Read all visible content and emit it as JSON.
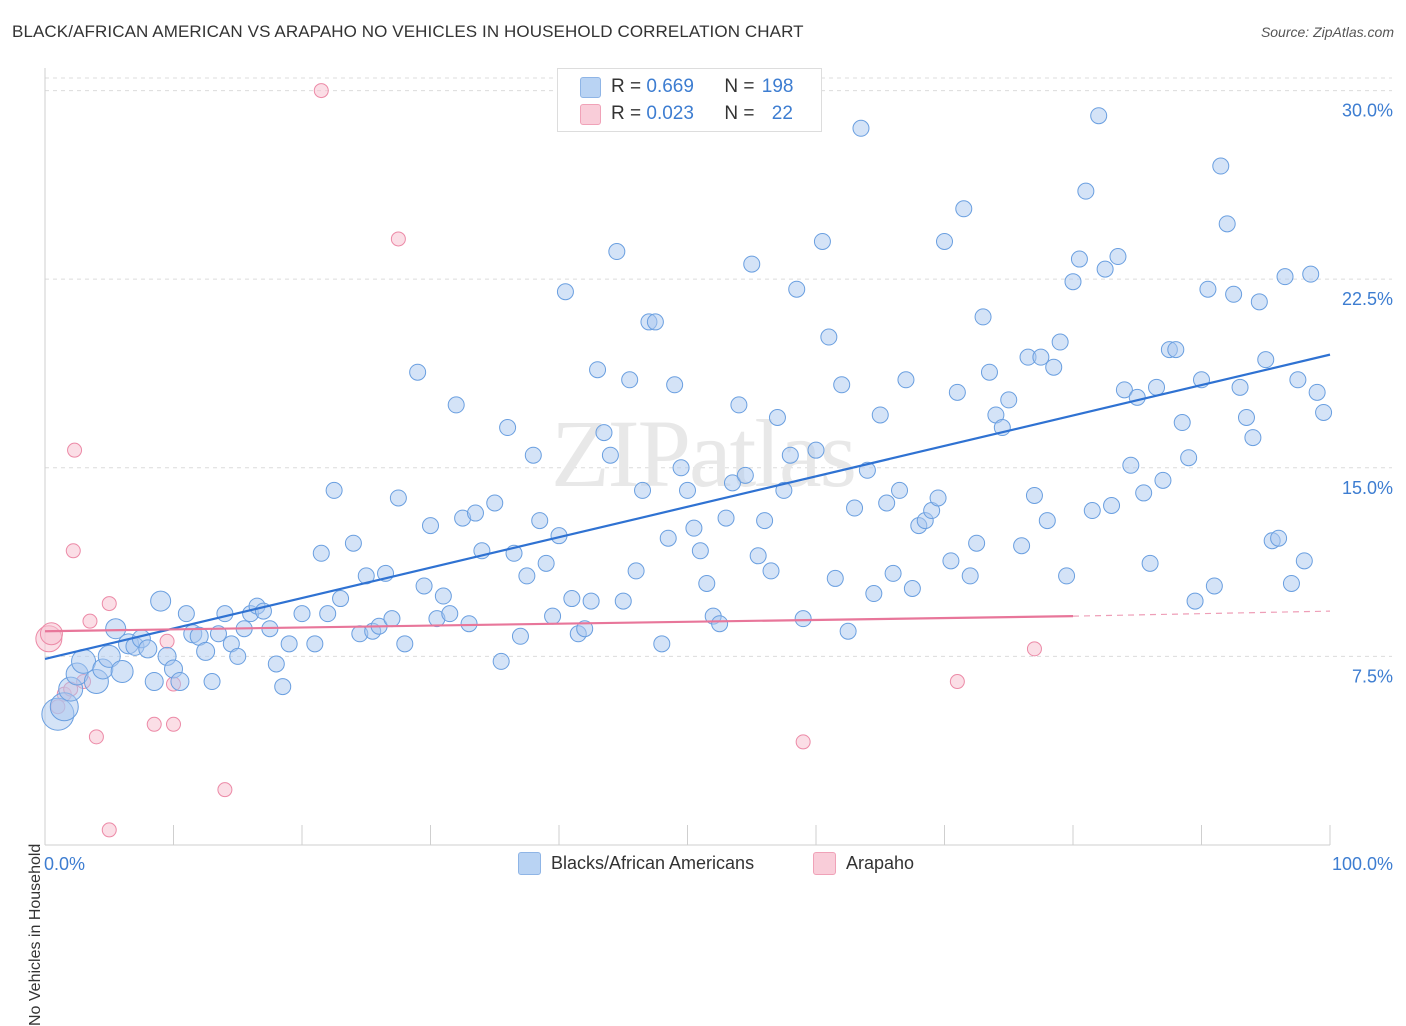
{
  "title": "BLACK/AFRICAN AMERICAN VS ARAPAHO NO VEHICLES IN HOUSEHOLD CORRELATION CHART",
  "source": "Source: ZipAtlas.com",
  "watermark": "ZIPatlas",
  "colors": {
    "blue_fill": "#a9c8f0",
    "blue_stroke": "#6a9fe0",
    "blue_line": "#2f72d2",
    "pink_fill": "#f7c2d1",
    "pink_stroke": "#ec8aa7",
    "pink_line": "#e8769a",
    "axis_text": "#3d7dd1"
  },
  "legend": {
    "rows": [
      {
        "r_label": "R = ",
        "r_value": "0.669",
        "n_label": "N = ",
        "n_value": "198"
      },
      {
        "r_label": "R = ",
        "r_value": "0.023",
        "n_label": "N = ",
        "n_value": "22"
      }
    ]
  },
  "bottom_legend": {
    "series1": "Blacks/African Americans",
    "series2": "Arapaho"
  },
  "chart_data": {
    "type": "scatter",
    "title": "BLACK/AFRICAN AMERICAN VS ARAPAHO NO VEHICLES IN HOUSEHOLD CORRELATION CHART",
    "xlabel": "",
    "ylabel": "No Vehicles in Household",
    "xlim": [
      0,
      100
    ],
    "ylim": [
      0,
      30.5
    ],
    "x_tick_labels": [
      "0.0%",
      "100.0%"
    ],
    "y_ticks": [
      7.5,
      15.0,
      22.5,
      30.0
    ],
    "y_tick_labels": [
      "7.5%",
      "15.0%",
      "22.5%",
      "30.0%"
    ],
    "grid": "horizontal dashed",
    "series": [
      {
        "name": "Blacks/African Americans",
        "trend": {
          "x": [
            0,
            100
          ],
          "y": [
            7.4,
            19.5
          ]
        },
        "points": [
          [
            1,
            5.2,
            14
          ],
          [
            1.5,
            5.5,
            12
          ],
          [
            2,
            6.2,
            10
          ],
          [
            2.5,
            6.8,
            9
          ],
          [
            3,
            7.3,
            10
          ],
          [
            4,
            6.5,
            10
          ],
          [
            4.5,
            7.0,
            8
          ],
          [
            5,
            7.5,
            9
          ],
          [
            5.5,
            8.6,
            8
          ],
          [
            6,
            6.9,
            9
          ],
          [
            6.5,
            8.0,
            8
          ],
          [
            7,
            7.9,
            7
          ],
          [
            7.5,
            8.2,
            7
          ],
          [
            8,
            7.8,
            7
          ],
          [
            8.5,
            6.5,
            7
          ],
          [
            9,
            9.7,
            8
          ],
          [
            9.5,
            7.5,
            7
          ],
          [
            10,
            7.0,
            7
          ],
          [
            10.5,
            6.5,
            7
          ],
          [
            11,
            9.2,
            6
          ],
          [
            11.5,
            8.4,
            7
          ],
          [
            12,
            8.3,
            7
          ],
          [
            12.5,
            7.7,
            7
          ],
          [
            13,
            6.5,
            6
          ],
          [
            13.5,
            8.4,
            6
          ],
          [
            14,
            9.2,
            6
          ],
          [
            14.5,
            8.0,
            6
          ],
          [
            15,
            7.5,
            6
          ],
          [
            15.5,
            8.6,
            6
          ],
          [
            16,
            9.2,
            6
          ],
          [
            16.5,
            9.5,
            6
          ],
          [
            17,
            9.3,
            6
          ],
          [
            17.5,
            8.6,
            6
          ],
          [
            18,
            7.2,
            6
          ],
          [
            18.5,
            6.3,
            6
          ],
          [
            19,
            8.0,
            6
          ],
          [
            20,
            9.2,
            6
          ],
          [
            21,
            8.0,
            6
          ],
          [
            21.5,
            11.6,
            6
          ],
          [
            22,
            9.2,
            6
          ],
          [
            22.5,
            14.1,
            6
          ],
          [
            23,
            9.8,
            6
          ],
          [
            24,
            12.0,
            6
          ],
          [
            24.5,
            8.4,
            6
          ],
          [
            25,
            10.7,
            6
          ],
          [
            25.5,
            8.5,
            6
          ],
          [
            26,
            8.7,
            6
          ],
          [
            26.5,
            10.8,
            6
          ],
          [
            27,
            9.0,
            6
          ],
          [
            27.5,
            13.8,
            6
          ],
          [
            28,
            8.0,
            6
          ],
          [
            29,
            18.8,
            6
          ],
          [
            29.5,
            10.3,
            6
          ],
          [
            30,
            12.7,
            6
          ],
          [
            30.5,
            9.0,
            6
          ],
          [
            31,
            9.9,
            6
          ],
          [
            31.5,
            9.2,
            6
          ],
          [
            32,
            17.5,
            6
          ],
          [
            32.5,
            13.0,
            6
          ],
          [
            33,
            8.8,
            6
          ],
          [
            33.5,
            13.2,
            6
          ],
          [
            34,
            11.7,
            6
          ],
          [
            35,
            13.6,
            6
          ],
          [
            35.5,
            7.3,
            6
          ],
          [
            36,
            16.6,
            6
          ],
          [
            36.5,
            11.6,
            6
          ],
          [
            37,
            8.3,
            6
          ],
          [
            37.5,
            10.7,
            6
          ],
          [
            38,
            15.5,
            6
          ],
          [
            38.5,
            12.9,
            6
          ],
          [
            39,
            11.2,
            6
          ],
          [
            39.5,
            9.1,
            6
          ],
          [
            40,
            12.3,
            6
          ],
          [
            40.5,
            22.0,
            6
          ],
          [
            41,
            9.8,
            6
          ],
          [
            41.5,
            8.4,
            6
          ],
          [
            42,
            8.6,
            6
          ],
          [
            42.5,
            9.7,
            6
          ],
          [
            43,
            18.9,
            6
          ],
          [
            43.5,
            16.4,
            6
          ],
          [
            44,
            15.5,
            6
          ],
          [
            44.5,
            23.6,
            6
          ],
          [
            45,
            9.7,
            6
          ],
          [
            45.5,
            18.5,
            6
          ],
          [
            46,
            10.9,
            6
          ],
          [
            46.5,
            14.1,
            6
          ],
          [
            47,
            20.8,
            6
          ],
          [
            47.5,
            20.8,
            6
          ],
          [
            48,
            8.0,
            6
          ],
          [
            48.5,
            12.2,
            6
          ],
          [
            49,
            18.3,
            6
          ],
          [
            49.5,
            15.0,
            6
          ],
          [
            50,
            14.1,
            6
          ],
          [
            50.5,
            12.6,
            6
          ],
          [
            51,
            11.7,
            6
          ],
          [
            51.5,
            10.4,
            6
          ],
          [
            52,
            9.1,
            6
          ],
          [
            52.5,
            8.8,
            6
          ],
          [
            53,
            13.0,
            6
          ],
          [
            53.5,
            14.4,
            6
          ],
          [
            54,
            17.5,
            6
          ],
          [
            54.5,
            14.7,
            6
          ],
          [
            55,
            23.1,
            6
          ],
          [
            55.5,
            11.5,
            6
          ],
          [
            56,
            12.9,
            6
          ],
          [
            56.5,
            10.9,
            6
          ],
          [
            57,
            17.0,
            6
          ],
          [
            57.5,
            14.1,
            6
          ],
          [
            58,
            15.5,
            6
          ],
          [
            58.5,
            22.1,
            6
          ],
          [
            59,
            9.0,
            6
          ],
          [
            60,
            15.7,
            6
          ],
          [
            60.5,
            24.0,
            6
          ],
          [
            61,
            20.2,
            6
          ],
          [
            61.5,
            10.6,
            6
          ],
          [
            62,
            18.3,
            6
          ],
          [
            62.5,
            8.5,
            6
          ],
          [
            63,
            13.4,
            6
          ],
          [
            63.5,
            28.5,
            6
          ],
          [
            64,
            14.9,
            6
          ],
          [
            64.5,
            10.0,
            6
          ],
          [
            65,
            17.1,
            6
          ],
          [
            65.5,
            13.6,
            6
          ],
          [
            66,
            10.8,
            6
          ],
          [
            66.5,
            14.1,
            6
          ],
          [
            67,
            18.5,
            6
          ],
          [
            67.5,
            10.2,
            6
          ],
          [
            68,
            12.7,
            6
          ],
          [
            68.5,
            12.9,
            6
          ],
          [
            69,
            13.3,
            6
          ],
          [
            69.5,
            13.8,
            6
          ],
          [
            70,
            24.0,
            6
          ],
          [
            70.5,
            11.3,
            6
          ],
          [
            71,
            18.0,
            6
          ],
          [
            71.5,
            25.3,
            6
          ],
          [
            72,
            10.7,
            6
          ],
          [
            72.5,
            12.0,
            6
          ],
          [
            73,
            21.0,
            6
          ],
          [
            73.5,
            18.8,
            6
          ],
          [
            74,
            17.1,
            6
          ],
          [
            74.5,
            16.6,
            6
          ],
          [
            75,
            17.7,
            6
          ],
          [
            76,
            11.9,
            6
          ],
          [
            76.5,
            19.4,
            6
          ],
          [
            77,
            13.9,
            6
          ],
          [
            77.5,
            19.4,
            6
          ],
          [
            78,
            12.9,
            6
          ],
          [
            78.5,
            19.0,
            6
          ],
          [
            79,
            20.0,
            6
          ],
          [
            79.5,
            10.7,
            6
          ],
          [
            80,
            22.4,
            6
          ],
          [
            80.5,
            23.3,
            6
          ],
          [
            81,
            26.0,
            6
          ],
          [
            81.5,
            13.3,
            6
          ],
          [
            82,
            29.0,
            6
          ],
          [
            82.5,
            22.9,
            6
          ],
          [
            83,
            13.5,
            6
          ],
          [
            83.5,
            23.4,
            6
          ],
          [
            84,
            18.1,
            6
          ],
          [
            84.5,
            15.1,
            6
          ],
          [
            85,
            17.8,
            6
          ],
          [
            85.5,
            14.0,
            6
          ],
          [
            86,
            11.2,
            6
          ],
          [
            86.5,
            18.2,
            6
          ],
          [
            87,
            14.5,
            6
          ],
          [
            87.5,
            19.7,
            6
          ],
          [
            88,
            19.7,
            6
          ],
          [
            88.5,
            16.8,
            6
          ],
          [
            89,
            15.4,
            6
          ],
          [
            89.5,
            9.7,
            6
          ],
          [
            90,
            18.5,
            6
          ],
          [
            90.5,
            22.1,
            6
          ],
          [
            91,
            10.3,
            6
          ],
          [
            91.5,
            27.0,
            6
          ],
          [
            92,
            24.7,
            6
          ],
          [
            92.5,
            21.9,
            6
          ],
          [
            93,
            18.2,
            6
          ],
          [
            93.5,
            17.0,
            6
          ],
          [
            94,
            16.2,
            6
          ],
          [
            94.5,
            21.6,
            6
          ],
          [
            95,
            19.3,
            6
          ],
          [
            95.5,
            12.1,
            6
          ],
          [
            96,
            12.2,
            6
          ],
          [
            96.5,
            22.6,
            6
          ],
          [
            97,
            10.4,
            6
          ],
          [
            97.5,
            18.5,
            6
          ],
          [
            98,
            11.3,
            6
          ],
          [
            98.5,
            22.7,
            6
          ],
          [
            99,
            18.0,
            6
          ],
          [
            99.5,
            17.2,
            6
          ]
        ]
      },
      {
        "name": "Arapaho",
        "trend": {
          "x": [
            0,
            80
          ],
          "y": [
            8.5,
            9.1
          ]
        },
        "trend_dashed": {
          "x": [
            80,
            100
          ],
          "y": [
            9.1,
            9.3
          ]
        },
        "points": [
          [
            0.3,
            8.2,
            13
          ],
          [
            0.5,
            8.4,
            11
          ],
          [
            1,
            5.5,
            7
          ],
          [
            1.5,
            6.0,
            7
          ],
          [
            2,
            6.2,
            7
          ],
          [
            2.2,
            11.7,
            7
          ],
          [
            2.3,
            15.7,
            7
          ],
          [
            3,
            6.5,
            7
          ],
          [
            3.5,
            8.9,
            7
          ],
          [
            4,
            4.3,
            7
          ],
          [
            5,
            9.6,
            7
          ],
          [
            5,
            0.6,
            7
          ],
          [
            8.5,
            4.8,
            7
          ],
          [
            9.5,
            8.1,
            7
          ],
          [
            10,
            6.4,
            7
          ],
          [
            10,
            4.8,
            7
          ],
          [
            14,
            2.2,
            7
          ],
          [
            21.5,
            30.0,
            7
          ],
          [
            27.5,
            24.1,
            7
          ],
          [
            59,
            4.1,
            7
          ],
          [
            71,
            6.5,
            7
          ],
          [
            77,
            7.8,
            7
          ]
        ]
      }
    ]
  }
}
